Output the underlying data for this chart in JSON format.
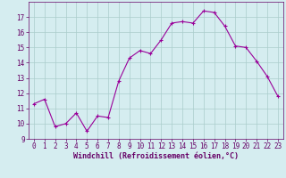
{
  "x": [
    0,
    1,
    2,
    3,
    4,
    5,
    6,
    7,
    8,
    9,
    10,
    11,
    12,
    13,
    14,
    15,
    16,
    17,
    18,
    19,
    20,
    21,
    22,
    23
  ],
  "y": [
    11.3,
    11.6,
    9.8,
    10.0,
    10.7,
    9.5,
    10.5,
    10.4,
    12.8,
    14.3,
    14.8,
    14.6,
    15.5,
    16.6,
    16.7,
    16.6,
    17.4,
    17.3,
    16.4,
    15.1,
    15.0,
    14.1,
    13.1,
    11.8
  ],
  "line_color": "#990099",
  "marker": "+",
  "marker_size": 3,
  "bg_color": "#d5edf0",
  "grid_color": "#aacccc",
  "xlabel": "Windchill (Refroidissement éolien,°C)",
  "xlabel_color": "#660066",
  "tick_color": "#660066",
  "ylim": [
    9,
    18
  ],
  "yticks": [
    9,
    10,
    11,
    12,
    13,
    14,
    15,
    16,
    17
  ],
  "xlim": [
    -0.5,
    23.5
  ],
  "xticks": [
    0,
    1,
    2,
    3,
    4,
    5,
    6,
    7,
    8,
    9,
    10,
    11,
    12,
    13,
    14,
    15,
    16,
    17,
    18,
    19,
    20,
    21,
    22,
    23
  ],
  "line_width": 0.8,
  "tick_fontsize": 5.5,
  "xlabel_fontsize": 6.0,
  "marker_edge_width": 0.8
}
